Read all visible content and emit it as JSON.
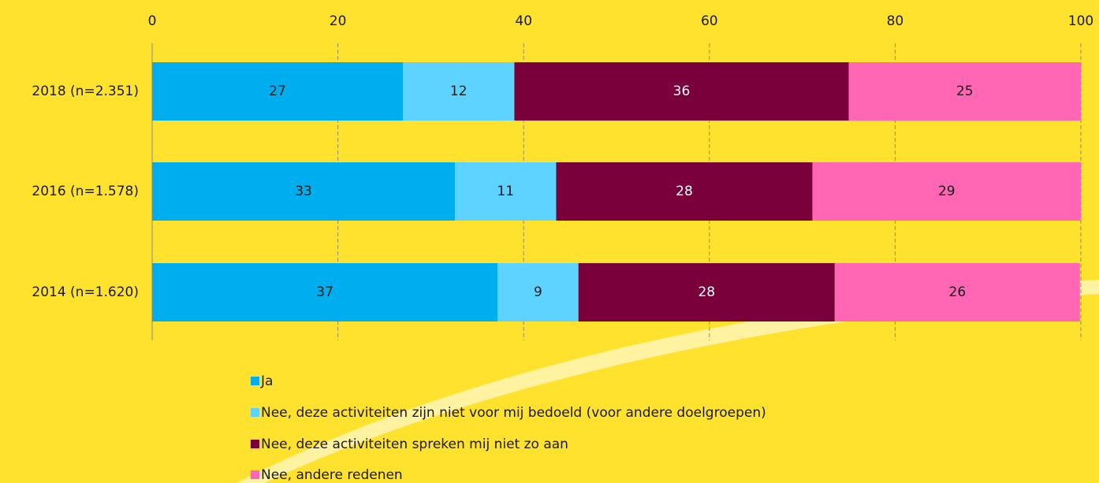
{
  "chart_data": {
    "type": "stacked-barh",
    "categories": [
      "2018 (n=2.351)",
      "2016 (n=1.578)",
      "2014 (n=1.620)"
    ],
    "series": [
      {
        "name": "Ja",
        "color": "#00aeef",
        "values": [
          27,
          32.6,
          37.2
        ],
        "value_labels": [
          "27",
          "33",
          "37"
        ]
      },
      {
        "name": "Nee, deze activiteiten zijn niet voor mij bedoeld (voor andere doelgroepen)",
        "color": "#5fd3ff",
        "values": [
          12,
          10.9,
          8.7
        ],
        "value_labels": [
          "12",
          "11",
          "9"
        ]
      },
      {
        "name": "Nee, deze activiteiten spreken mij niet zo aan",
        "color": "#7a003c",
        "values": [
          36,
          27.6,
          27.6
        ],
        "value_labels": [
          "36",
          "28",
          "28"
        ]
      },
      {
        "name": "Nee, andere redenen",
        "color": "#ff66b3",
        "values": [
          25,
          28.9,
          26.4
        ],
        "value_labels": [
          "25",
          "29",
          "26"
        ]
      }
    ],
    "xlim": [
      0,
      100
    ],
    "xticks": [
      0,
      20,
      40,
      60,
      80,
      100
    ],
    "grid": true,
    "legend": "bottom"
  }
}
